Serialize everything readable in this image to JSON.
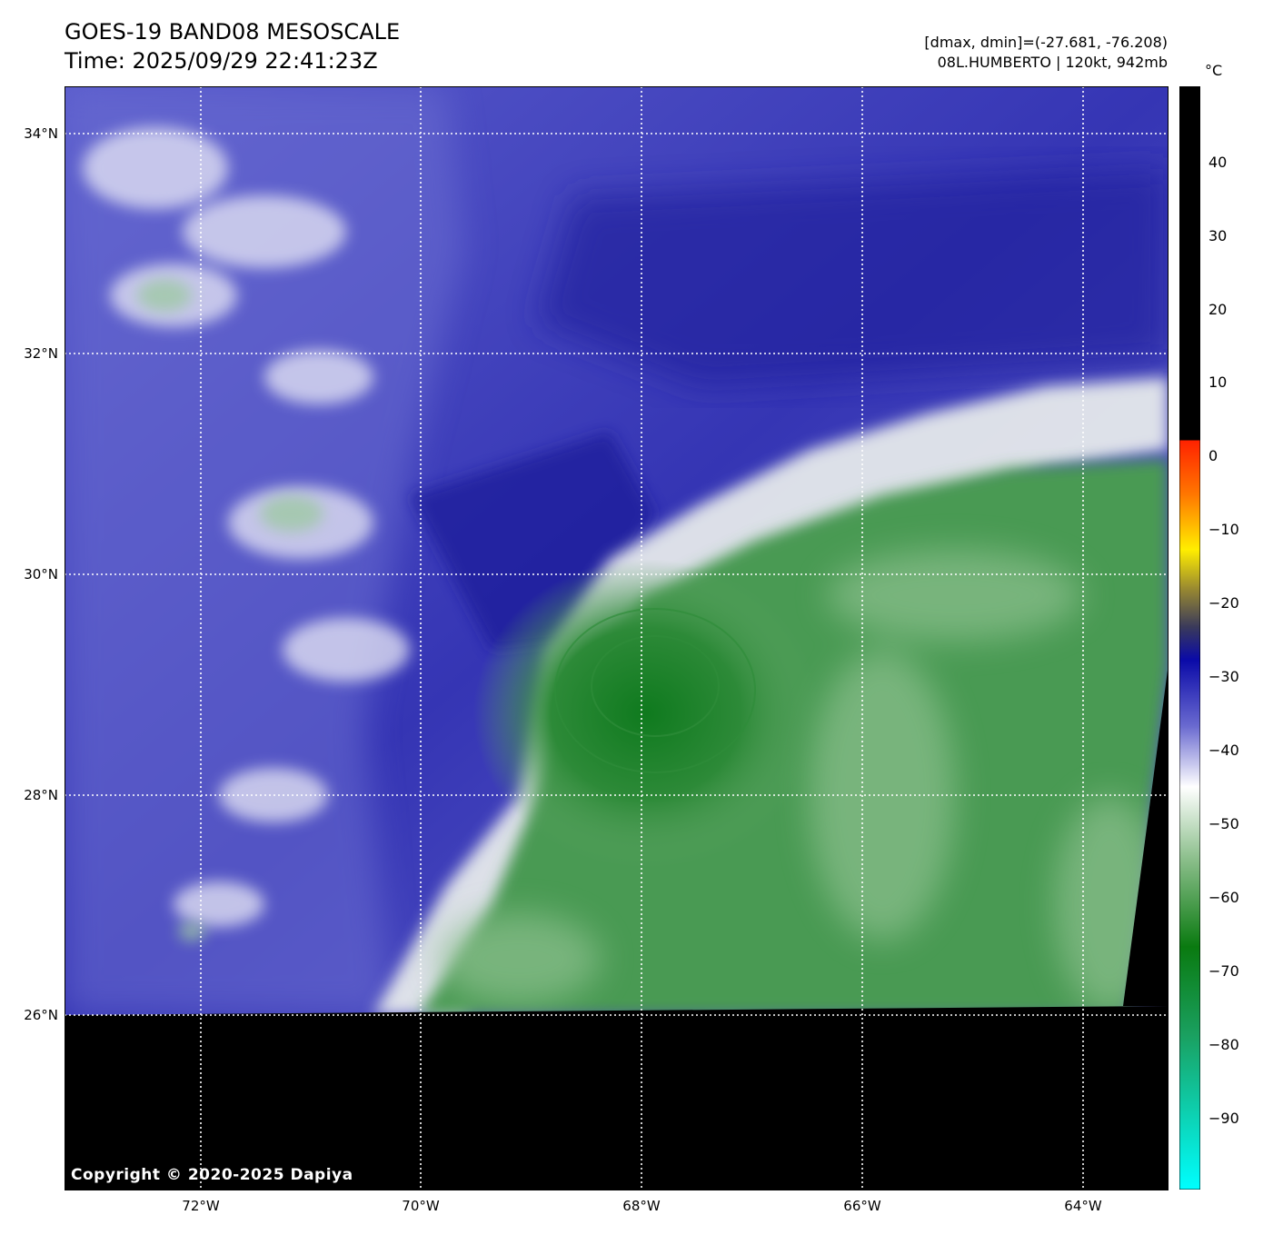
{
  "header": {
    "title_line1": "GOES-19 BAND08 MESOSCALE",
    "title_line2": "Time: 2025/09/29 22:41:23Z",
    "info_line1": "[dmax, dmin]=(-27.681, -76.208)",
    "info_line2": "08L.HUMBERTO | 120kt, 942mb"
  },
  "axes": {
    "lat_labels": [
      "34°N",
      "32°N",
      "30°N",
      "28°N",
      "26°N"
    ],
    "lon_labels": [
      "72°W",
      "70°W",
      "68°W",
      "66°W",
      "64°W"
    ]
  },
  "colorbar": {
    "unit": "°C",
    "ticks": [
      "40",
      "30",
      "20",
      "10",
      "0",
      "−10",
      "−20",
      "−30",
      "−40",
      "−50",
      "−60",
      "−70",
      "−80",
      "−90"
    ],
    "range": [
      -100,
      50
    ]
  },
  "colors": {
    "dry_air": "#3a3ab8",
    "moist_cloud": "#2e8a3a",
    "no_data": "#000000",
    "gridline": "#ffffff"
  },
  "copyright": "Copyright © 2020-2025 Dapiya"
}
